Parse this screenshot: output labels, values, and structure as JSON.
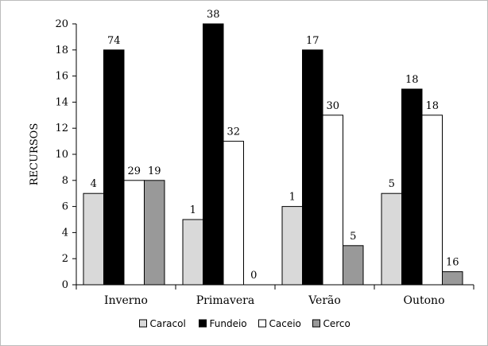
{
  "chart_data": {
    "type": "bar",
    "title": "",
    "xlabel": "",
    "ylabel": "RECURSOS",
    "ylim": [
      0,
      20
    ],
    "yticks": [
      0,
      2,
      4,
      6,
      8,
      10,
      12,
      14,
      16,
      18,
      20
    ],
    "categories": [
      "Inverno",
      "Primavera",
      "Verão",
      "Outono"
    ],
    "grid": false,
    "legend_position": "bottom",
    "series": [
      {
        "name": "Caracol",
        "color": "#d9d9d9",
        "values": [
          7,
          5,
          6,
          7
        ],
        "labels": [
          "4",
          "1",
          "1",
          "5"
        ]
      },
      {
        "name": "Fundeio",
        "color": "#000000",
        "values": [
          18,
          20,
          18,
          15
        ],
        "labels": [
          "74",
          "38",
          "17",
          "18"
        ]
      },
      {
        "name": "Caceio",
        "color": "#ffffff",
        "values": [
          8,
          11,
          13,
          13
        ],
        "labels": [
          "29",
          "32",
          "30",
          "18"
        ]
      },
      {
        "name": "Cerco",
        "color": "#999999",
        "values": [
          8,
          0,
          3,
          1
        ],
        "labels": [
          "19",
          "0",
          "5",
          "16"
        ]
      }
    ]
  }
}
